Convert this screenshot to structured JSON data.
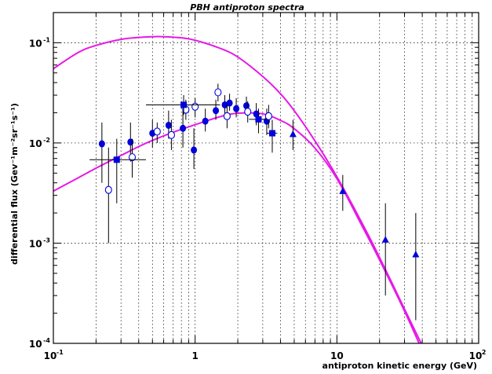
{
  "chart_data": {
    "type": "scatter",
    "title": "PBH antiproton spectra",
    "xlabel": "antiproton kinetic energy (GeV)",
    "ylabel": "differential flux (Gev⁻¹m⁻²sr⁻¹s⁻¹)",
    "x_scale": "log",
    "y_scale": "log",
    "xlim": [
      0.1,
      100
    ],
    "ylim": [
      0.0001,
      0.2
    ],
    "grid": true,
    "x_tick_labels": [
      {
        "value": 0.1,
        "base": "10",
        "exp": "-1"
      },
      {
        "value": 1,
        "base": "1",
        "exp": ""
      },
      {
        "value": 10,
        "base": "10",
        "exp": ""
      },
      {
        "value": 100,
        "base": "10",
        "exp": "2"
      }
    ],
    "y_tick_labels": [
      {
        "value": 0.0001,
        "base": "10",
        "exp": "-4"
      },
      {
        "value": 0.001,
        "base": "10",
        "exp": "-3"
      },
      {
        "value": 0.01,
        "base": "10",
        "exp": "-2"
      },
      {
        "value": 0.1,
        "base": "10",
        "exp": "-1"
      }
    ],
    "curves": [
      {
        "color": "#e619e6",
        "x": [
          0.1,
          0.15,
          0.2,
          0.3,
          0.4,
          0.5,
          0.6,
          0.8,
          1,
          1.5,
          2,
          3,
          4,
          5,
          7,
          10,
          15,
          20,
          30,
          40
        ],
        "y": [
          0.055,
          0.08,
          0.094,
          0.108,
          0.113,
          0.115,
          0.115,
          0.112,
          0.106,
          0.088,
          0.072,
          0.046,
          0.031,
          0.021,
          0.0105,
          0.0046,
          0.0016,
          0.00072,
          0.00022,
          9.5e-05
        ]
      },
      {
        "color": "#e619e6",
        "x": [
          0.1,
          0.15,
          0.2,
          0.3,
          0.4,
          0.5,
          0.7,
          1,
          1.5,
          2,
          3,
          4,
          5,
          7,
          10,
          15,
          20,
          30,
          40
        ],
        "y": [
          0.0033,
          0.0045,
          0.0056,
          0.0075,
          0.0092,
          0.0106,
          0.0128,
          0.0152,
          0.0183,
          0.0198,
          0.0195,
          0.0168,
          0.0139,
          0.0089,
          0.0044,
          0.0015,
          0.00068,
          0.00021,
          8.5e-05
        ]
      }
    ],
    "series": [
      {
        "marker": "circle-filled",
        "color": "#0000dd",
        "points": [
          {
            "x": 0.22,
            "y": 0.0098,
            "ylo": 0.004,
            "yhi": 0.016
          },
          {
            "x": 0.35,
            "y": 0.0102,
            "ylo": 0.0065,
            "yhi": 0.016
          },
          {
            "x": 0.5,
            "y": 0.0125,
            "ylo": 0.009,
            "yhi": 0.017
          },
          {
            "x": 0.65,
            "y": 0.015,
            "ylo": 0.011,
            "yhi": 0.021
          },
          {
            "x": 0.82,
            "y": 0.014,
            "ylo": 0.009,
            "yhi": 0.021
          },
          {
            "x": 0.98,
            "y": 0.0085,
            "ylo": 0.0055,
            "yhi": 0.014
          },
          {
            "x": 1.18,
            "y": 0.0165,
            "ylo": 0.013,
            "yhi": 0.022
          },
          {
            "x": 1.4,
            "y": 0.021,
            "ylo": 0.017,
            "yhi": 0.027
          },
          {
            "x": 1.62,
            "y": 0.024,
            "ylo": 0.019,
            "yhi": 0.03
          },
          {
            "x": 1.75,
            "y": 0.025,
            "ylo": 0.021,
            "yhi": 0.031
          },
          {
            "x": 1.95,
            "y": 0.022,
            "ylo": 0.018,
            "yhi": 0.028
          },
          {
            "x": 2.3,
            "y": 0.0235,
            "ylo": 0.019,
            "yhi": 0.029
          },
          {
            "x": 2.7,
            "y": 0.0195,
            "ylo": 0.015,
            "yhi": 0.025
          },
          {
            "x": 3.2,
            "y": 0.0165,
            "ylo": 0.012,
            "yhi": 0.022
          }
        ]
      },
      {
        "marker": "circle-open",
        "color": "#0000dd",
        "points": [
          {
            "x": 0.245,
            "y": 0.0034,
            "ylo": 0.001,
            "yhi": 0.009
          },
          {
            "x": 0.36,
            "y": 0.0072,
            "ylo": 0.0045,
            "yhi": 0.011
          },
          {
            "x": 0.54,
            "y": 0.013,
            "ylo": 0.01,
            "yhi": 0.016
          },
          {
            "x": 0.68,
            "y": 0.012,
            "ylo": 0.0085,
            "yhi": 0.017
          },
          {
            "x": 0.86,
            "y": 0.0215,
            "ylo": 0.017,
            "yhi": 0.027
          },
          {
            "x": 1.0,
            "y": 0.023,
            "ylo": 0.018,
            "yhi": 0.028
          },
          {
            "x": 1.45,
            "y": 0.032,
            "ylo": 0.026,
            "yhi": 0.039
          },
          {
            "x": 1.68,
            "y": 0.0185,
            "ylo": 0.014,
            "yhi": 0.024
          },
          {
            "x": 2.35,
            "y": 0.0205,
            "ylo": 0.016,
            "yhi": 0.026
          },
          {
            "x": 3.3,
            "y": 0.0185,
            "ylo": 0.014,
            "yhi": 0.024
          }
        ]
      },
      {
        "marker": "square-filled",
        "color": "#0000dd",
        "points": [
          {
            "x": 0.28,
            "y": 0.0068,
            "xlo": 0.18,
            "xhi": 0.45,
            "ylo": 0.0025,
            "yhi": 0.011
          },
          {
            "x": 0.83,
            "y": 0.024,
            "xlo": 0.45,
            "xhi": 1.5,
            "ylo": 0.019,
            "yhi": 0.03
          },
          {
            "x": 2.8,
            "y": 0.0172,
            "xlo": 2.4,
            "xhi": 3.2,
            "ylo": 0.0125,
            "yhi": 0.022
          },
          {
            "x": 3.5,
            "y": 0.0125,
            "xlo": 3.2,
            "xhi": 3.8,
            "ylo": 0.008,
            "yhi": 0.017
          }
        ]
      },
      {
        "marker": "triangle-filled",
        "color": "#0000dd",
        "points": [
          {
            "x": 4.9,
            "y": 0.0122,
            "ylo": 0.0085,
            "yhi": 0.017
          },
          {
            "x": 11,
            "y": 0.0033,
            "ylo": 0.0021,
            "yhi": 0.0048
          },
          {
            "x": 22,
            "y": 0.00108,
            "ylo": 0.0003,
            "yhi": 0.0025
          },
          {
            "x": 36,
            "y": 0.00077,
            "ylo": 0.00017,
            "yhi": 0.002
          }
        ]
      }
    ]
  }
}
